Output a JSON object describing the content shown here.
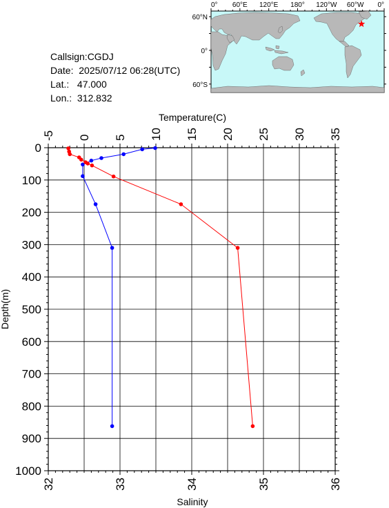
{
  "station": {
    "callsign_line": "Callsign:CGDJ",
    "date_line": "Date:  2025/07/12 06:28(UTC)",
    "lat_line": "Lat.:   47.000",
    "lon_line": "Lon.:  312.832"
  },
  "map": {
    "top_lon_labels": [
      "0°",
      "60°E",
      "120°E",
      "180°",
      "120°W",
      "60°W",
      "0°"
    ],
    "lat_labels": [
      "60°N",
      "0°",
      "60°S"
    ],
    "marker": {
      "lon": 312.832,
      "lat": 47.0,
      "color": "#ff0000",
      "shape": "star"
    },
    "ocean_color": "#c8f8f8",
    "land_color": "#b8b8b8"
  },
  "chart_data": {
    "type": "line",
    "ylabel": "Depth(m)",
    "top_axis_label": "Temperature(C)",
    "bottom_axis_label": "Salinity",
    "depth_ticks": [
      "0",
      "100",
      "200",
      "300",
      "400",
      "500",
      "600",
      "700",
      "800",
      "900",
      "1000"
    ],
    "temperature_ticks": [
      "-5",
      "0",
      "5",
      "10",
      "15",
      "20",
      "25",
      "30",
      "35"
    ],
    "salinity_ticks": [
      "32",
      "33",
      "34",
      "35",
      "36"
    ],
    "depth_range": [
      0,
      1000
    ],
    "temperature_range": [
      -5,
      35
    ],
    "salinity_range": [
      32,
      36
    ],
    "grid": true,
    "series": [
      {
        "axis": "temperature",
        "color": "#0000ff",
        "points": [
          [
            9.9,
            1
          ],
          [
            8.1,
            5
          ],
          [
            5.5,
            20
          ],
          [
            2.4,
            32
          ],
          [
            1.0,
            40
          ],
          [
            -0.2,
            52
          ],
          [
            -0.2,
            88
          ],
          [
            1.6,
            175
          ],
          [
            3.9,
            310
          ],
          [
            3.9,
            862
          ]
        ]
      },
      {
        "axis": "salinity",
        "color": "#ff0000",
        "points": [
          [
            32.28,
            2
          ],
          [
            32.29,
            12
          ],
          [
            32.3,
            20
          ],
          [
            32.43,
            30
          ],
          [
            32.46,
            37
          ],
          [
            32.52,
            45
          ],
          [
            32.55,
            49
          ],
          [
            32.61,
            55
          ],
          [
            32.91,
            89
          ],
          [
            33.85,
            175
          ],
          [
            34.64,
            310
          ],
          [
            34.85,
            862
          ]
        ]
      }
    ]
  }
}
